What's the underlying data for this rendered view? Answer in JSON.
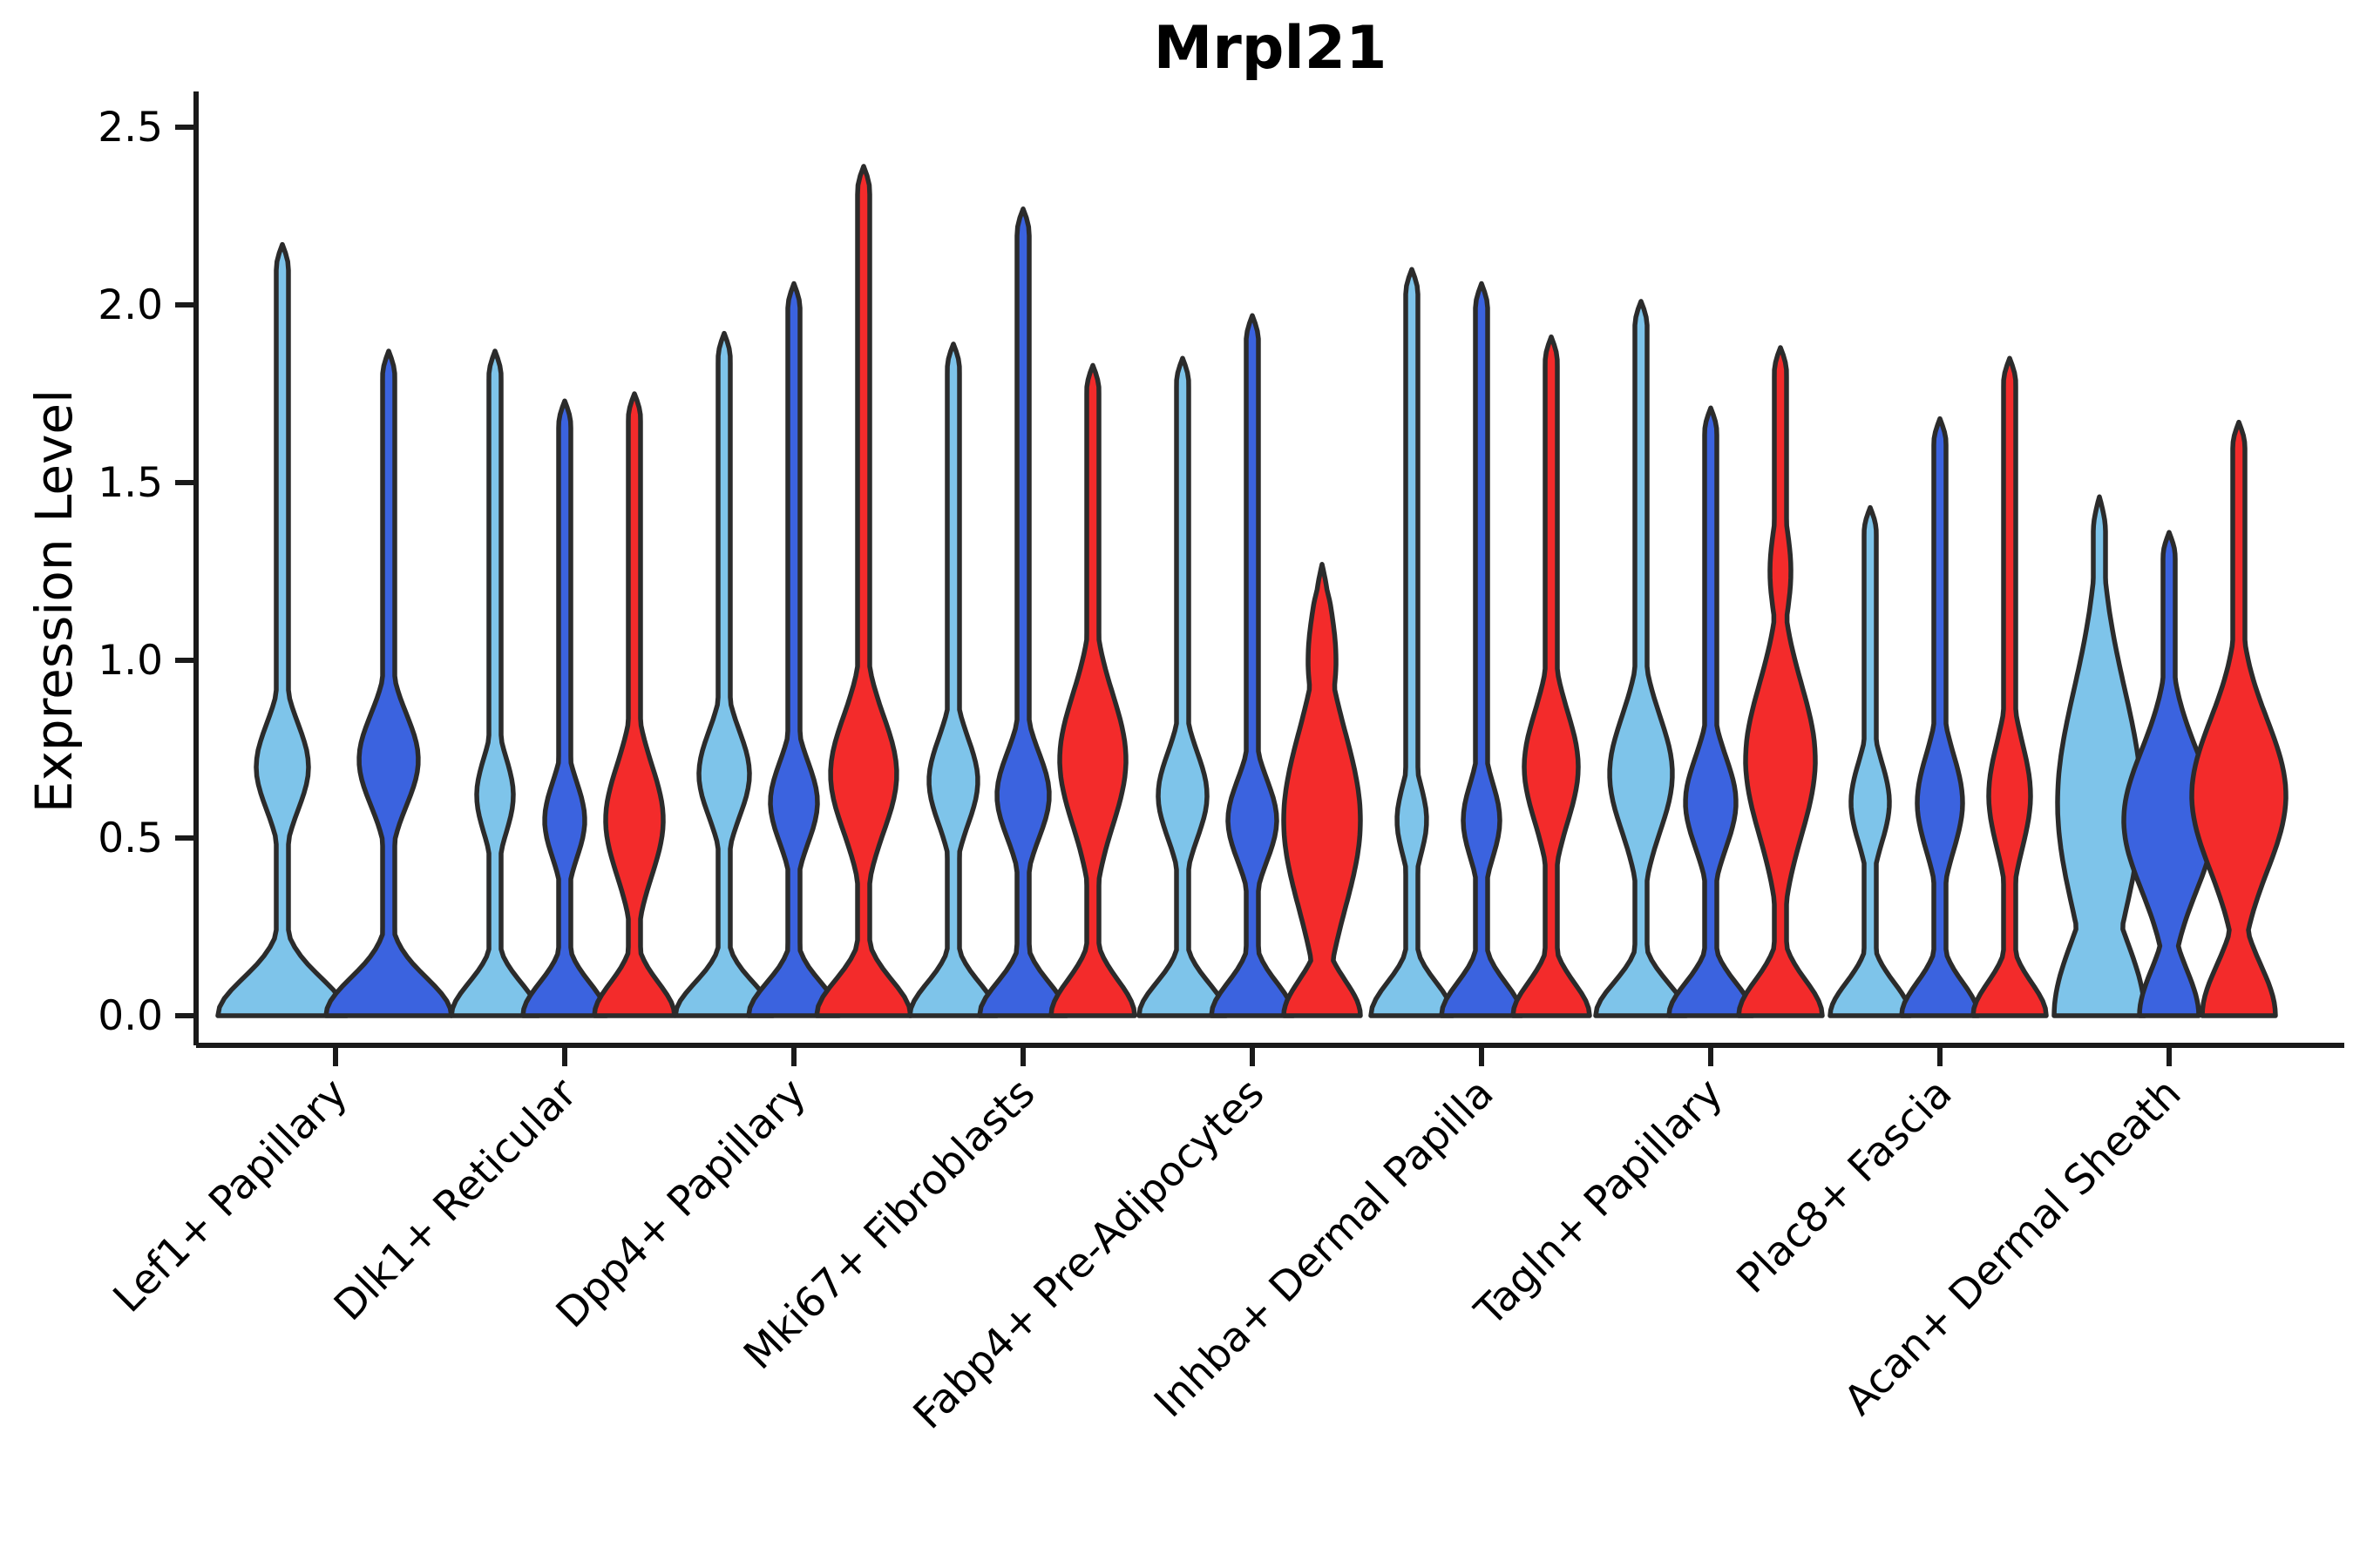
{
  "page": {
    "background": "#ffffff"
  },
  "chart_data": {
    "type": "violin",
    "title": "Mrpl21",
    "ylabel": "Expression Level",
    "xlabel": "",
    "ylim": [
      0,
      2.5
    ],
    "ytick_labels": [
      "0.0",
      "0.5",
      "1.0",
      "1.5",
      "2.0",
      "2.5"
    ],
    "ytick_values": [
      0,
      0.5,
      1.0,
      1.5,
      2.0,
      2.5
    ],
    "grid": false,
    "legend_position": "none",
    "palette": {
      "lightblue": "#7EC4EA",
      "blue": "#3B63DF",
      "red": "#F32B2B",
      "outline": "#2B2B2B",
      "axis": "#1A1A1A",
      "text": "#000000"
    },
    "categories": [
      "Lef1+ Papillary",
      "Dlk1+ Reticular",
      "Dpp4+ Papillary",
      "Mki67+ Fibroblasts",
      "Fabp4+ Pre-Adipocytes",
      "Inhba+ Dermal Papilla",
      "Tagln+ Papillary",
      "Plac8+ Fascia",
      "Acan+ Dermal Sheath"
    ],
    "groups": [
      {
        "category": "Lef1+ Papillary",
        "violins": [
          {
            "color": "lightblue",
            "max_expression": 2.17,
            "shape": {
              "base": 74,
              "s0": 0.15,
              "bulges": [
                [
                  0.7,
                  0.17,
                  30
                ]
              ],
              "taper": 0.07
            }
          },
          {
            "color": "blue",
            "max_expression": 1.87,
            "shape": {
              "base": 72,
              "s0": 0.15,
              "bulges": [
                [
                  0.72,
                  0.18,
                  34
                ]
              ],
              "taper": 0.07
            }
          }
        ]
      },
      {
        "category": "Dlk1+ Reticular",
        "violins": [
          {
            "color": "lightblue",
            "max_expression": 1.87,
            "shape": {
              "base": 50,
              "s0": 0.13,
              "bulges": [
                [
                  0.62,
                  0.15,
                  21
                ]
              ],
              "taper": 0.07
            }
          },
          {
            "color": "blue",
            "max_expression": 1.73,
            "shape": {
              "base": 48,
              "s0": 0.13,
              "bulges": [
                [
                  0.55,
                  0.15,
                  23
                ]
              ],
              "taper": 0.07
            }
          },
          {
            "color": "red",
            "max_expression": 1.75,
            "shape": {
              "base": 46,
              "s0": 0.13,
              "bulges": [
                [
                  0.55,
                  0.22,
                  33
                ]
              ],
              "taper": 0.07
            }
          }
        ]
      },
      {
        "category": "Dpp4+ Papillary",
        "violins": [
          {
            "color": "lightblue",
            "max_expression": 1.92,
            "shape": {
              "base": 56,
              "s0": 0.13,
              "bulges": [
                [
                  0.68,
                  0.17,
                  29
                ]
              ],
              "taper": 0.07
            }
          },
          {
            "color": "blue",
            "max_expression": 2.06,
            "shape": {
              "base": 52,
              "s0": 0.13,
              "bulges": [
                [
                  0.6,
                  0.16,
                  27
                ]
              ],
              "taper": 0.07
            }
          },
          {
            "color": "red",
            "max_expression": 2.39,
            "shape": {
              "base": 54,
              "s0": 0.14,
              "bulges": [
                [
                  0.68,
                  0.23,
                  38
                ]
              ],
              "taper": 0.07
            }
          }
        ]
      },
      {
        "category": "Mki67+ Fibroblasts",
        "violins": [
          {
            "color": "lightblue",
            "max_expression": 1.89,
            "shape": {
              "base": 50,
              "s0": 0.13,
              "bulges": [
                [
                  0.66,
                  0.17,
                  28
                ]
              ],
              "taper": 0.07
            }
          },
          {
            "color": "blue",
            "max_expression": 2.27,
            "shape": {
              "base": 50,
              "s0": 0.13,
              "bulges": [
                [
                  0.62,
                  0.17,
                  30
                ]
              ],
              "taper": 0.07
            }
          },
          {
            "color": "red",
            "max_expression": 1.83,
            "shape": {
              "base": 48,
              "s0": 0.14,
              "bulges": [
                [
                  0.72,
                  0.26,
                  38
                ]
              ],
              "taper": 0.07
            }
          }
        ]
      },
      {
        "category": "Fabp4+ Pre-Adipocytes",
        "violins": [
          {
            "color": "lightblue",
            "max_expression": 1.85,
            "shape": {
              "base": 50,
              "s0": 0.13,
              "bulges": [
                [
                  0.62,
                  0.17,
                  28
                ]
              ],
              "taper": 0.07
            }
          },
          {
            "color": "blue",
            "max_expression": 1.97,
            "shape": {
              "base": 47,
              "s0": 0.13,
              "bulges": [
                [
                  0.55,
                  0.16,
                  28
                ]
              ],
              "taper": 0.07
            }
          },
          {
            "color": "red",
            "max_expression": 1.27,
            "shape": {
              "base": 44,
              "s0": 0.14,
              "bulges": [
                [
                  0.55,
                  0.35,
                  44
                ],
                [
                  1.0,
                  0.22,
                  16
                ]
              ],
              "taper": 0.12
            }
          }
        ]
      },
      {
        "category": "Inhba+ Dermal Papilla",
        "violins": [
          {
            "color": "lightblue",
            "max_expression": 2.1,
            "shape": {
              "base": 47,
              "s0": 0.13,
              "bulges": [
                [
                  0.55,
                  0.14,
                  17
                ]
              ],
              "taper": 0.07
            }
          },
          {
            "color": "blue",
            "max_expression": 2.06,
            "shape": {
              "base": 46,
              "s0": 0.13,
              "bulges": [
                [
                  0.55,
                  0.15,
                  21
                ]
              ],
              "taper": 0.07
            }
          },
          {
            "color": "red",
            "max_expression": 1.91,
            "shape": {
              "base": 44,
              "s0": 0.13,
              "bulges": [
                [
                  0.7,
                  0.22,
                  31
                ]
              ],
              "taper": 0.07
            }
          }
        ]
      },
      {
        "category": "Tagln+ Papillary",
        "violins": [
          {
            "color": "lightblue",
            "max_expression": 2.01,
            "shape": {
              "base": 52,
              "s0": 0.13,
              "bulges": [
                [
                  0.68,
                  0.23,
                  36
                ]
              ],
              "taper": 0.07
            }
          },
          {
            "color": "blue",
            "max_expression": 1.71,
            "shape": {
              "base": 48,
              "s0": 0.13,
              "bulges": [
                [
                  0.6,
                  0.18,
                  29
                ]
              ],
              "taper": 0.07
            }
          },
          {
            "color": "red",
            "max_expression": 1.88,
            "shape": {
              "base": 48,
              "s0": 0.14,
              "bulges": [
                [
                  0.72,
                  0.3,
                  40
                ],
                [
                  1.25,
                  0.18,
                  12
                ]
              ],
              "taper": 0.07
            }
          }
        ]
      },
      {
        "category": "Plac8+ Fascia",
        "violins": [
          {
            "color": "lightblue",
            "max_expression": 1.43,
            "shape": {
              "base": 46,
              "s0": 0.13,
              "bulges": [
                [
                  0.6,
                  0.16,
                  22
                ]
              ],
              "taper": 0.07
            }
          },
          {
            "color": "blue",
            "max_expression": 1.68,
            "shape": {
              "base": 44,
              "s0": 0.13,
              "bulges": [
                [
                  0.6,
                  0.19,
                  26
                ]
              ],
              "taper": 0.07
            }
          },
          {
            "color": "red",
            "max_expression": 1.85,
            "shape": {
              "base": 42,
              "s0": 0.13,
              "bulges": [
                [
                  0.62,
                  0.21,
                  24
                ]
              ],
              "taper": 0.07
            }
          }
        ]
      },
      {
        "category": "Acan+ Dermal Sheath",
        "violins": [
          {
            "color": "lightblue",
            "max_expression": 1.46,
            "shape": {
              "base": 52,
              "s0": 0.3,
              "bulges": [
                [
                  0.6,
                  0.45,
                  48
                ]
              ],
              "taper": 0.1
            }
          },
          {
            "color": "blue",
            "max_expression": 1.36,
            "shape": {
              "base": 34,
              "s0": 0.18,
              "bulges": [
                [
                  0.55,
                  0.28,
                  52
                ]
              ],
              "taper": 0.07
            }
          },
          {
            "color": "red",
            "max_expression": 1.67,
            "shape": {
              "base": 42,
              "s0": 0.2,
              "bulges": [
                [
                  0.62,
                  0.3,
                  54
                ]
              ],
              "taper": 0.07
            }
          }
        ]
      }
    ]
  }
}
